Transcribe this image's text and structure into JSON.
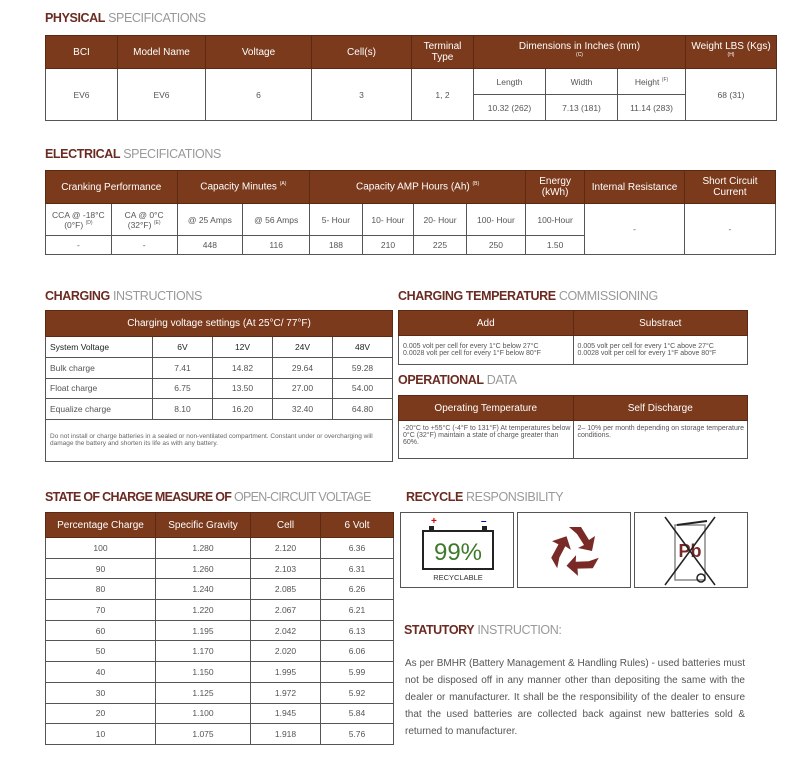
{
  "physical": {
    "title_bold": "PHYSICAL",
    "title_light": "SPECIFICATIONS",
    "headers": [
      "BCI",
      "Model Name",
      "Voltage",
      "Cell(s)",
      "Terminal Type",
      "Dimensions in Inches (mm)",
      "Weight LBS (Kgs)"
    ],
    "dim_note": "(C)",
    "weight_note": "(H)",
    "height_note": "(F)",
    "sub_headers": [
      "Length",
      "Width",
      "Height"
    ],
    "row": [
      "EV6",
      "EV6",
      "6",
      "3",
      "1, 2"
    ],
    "dims": [
      "10.32 (262)",
      "7.13 (181)",
      "11.14 (283)"
    ],
    "weight": "68 (31)"
  },
  "electrical": {
    "title_bold": "ELECTRICAL",
    "title_light": "SPECIFICATIONS",
    "headers": [
      "Cranking Performance",
      "Capacity Minutes",
      "Capacity AMP Hours (Ah)",
      "Energy (kWh)",
      "Internal Resistance",
      "Short Circuit Current"
    ],
    "notes": {
      "cap_min": "(A)",
      "cap_ah": "(B)",
      "cca": "(D)",
      "ca": "(E)"
    },
    "sub_headers": [
      "CCA @ -18°C (0°F)",
      "CA @ 0°C (32°F)",
      "@ 25 Amps",
      "@ 56 Amps",
      "5- Hour",
      "10- Hour",
      "20- Hour",
      "100- Hour",
      "100-Hour"
    ],
    "values": [
      "-",
      "-",
      "448",
      "116",
      "188",
      "210",
      "225",
      "250",
      "1.50"
    ],
    "internal_resistance": "-",
    "short_circuit": "-"
  },
  "charging": {
    "title_bold": "CHARGING",
    "title_light": "INSTRUCTIONS",
    "header": "Charging voltage settings (At 25°C/ 77°F)",
    "columns": [
      "System Voltage",
      "6V",
      "12V",
      "24V",
      "48V"
    ],
    "rows": [
      [
        "Bulk charge",
        "7.41",
        "14.82",
        "29.64",
        "59.28"
      ],
      [
        "Float charge",
        "6.75",
        "13.50",
        "27.00",
        "54.00"
      ],
      [
        "Equalize charge",
        "8.10",
        "16.20",
        "32.40",
        "64.80"
      ]
    ],
    "note": "Do not install or charge batteries in a sealed or non-ventilated compartment. Constant under or overcharging will damage the battery and shorten its life as with any battery."
  },
  "charging_temp": {
    "title_bold": "CHARGING TEMPERATURE",
    "title_light": "COMMISSIONING",
    "headers": [
      "Add",
      "Substract"
    ],
    "add": [
      "0.005 volt per cell for every 1°C below 27°C",
      "0.0028 volt per cell for every 1°F below 80°F"
    ],
    "subtract": [
      "0.005 volt per cell for every 1°C above 27°C",
      "0.0028 volt per cell for every 1°F above 80°F"
    ]
  },
  "operational": {
    "title_bold": "OPERATIONAL",
    "title_light": "DATA",
    "headers": [
      "Operating Temperature",
      "Self Discharge"
    ],
    "operating": "-20°C to +55°C (-4°F to 131°F) At temperatures below 0°C (32°F) maintain a state of charge greater than 60%.",
    "self_discharge": "2– 10% per month depending on storage temperature conditions."
  },
  "soc": {
    "title_bold": "STATE OF CHARGE MEASURE OF",
    "title_light": "OPEN-CIRCUIT VOLTAGE",
    "columns": [
      "Percentage Charge",
      "Specific Gravity",
      "Cell",
      "6 Volt"
    ],
    "rows": [
      [
        "100",
        "1.280",
        "2.120",
        "6.36"
      ],
      [
        "90",
        "1.260",
        "2.103",
        "6.31"
      ],
      [
        "80",
        "1.240",
        "2.085",
        "6.26"
      ],
      [
        "70",
        "1.220",
        "2.067",
        "6.21"
      ],
      [
        "60",
        "1.195",
        "2.042",
        "6.13"
      ],
      [
        "50",
        "1.170",
        "2.020",
        "6.06"
      ],
      [
        "40",
        "1.150",
        "1.995",
        "5.99"
      ],
      [
        "30",
        "1.125",
        "1.972",
        "5.92"
      ],
      [
        "20",
        "1.100",
        "1.945",
        "5.84"
      ],
      [
        "10",
        "1.075",
        "1.918",
        "5.76"
      ]
    ]
  },
  "recycle": {
    "title_bold": "RECYCLE",
    "title_light": "RESPONSIBILITY",
    "battery_percent": "99%",
    "battery_label": "RECYCLABLE",
    "pb": "Pb",
    "icons": [
      "battery-recyclable-icon",
      "recycle-icon",
      "no-bin-pb-icon"
    ],
    "color": "#7a2a26"
  },
  "statutory": {
    "title_bold": "STATUTORY",
    "title_light": "INSTRUCTION:",
    "text": "As per BMHR (Battery Management & Handling Rules) - used batteries must not be disposed off in any manner other than depositing the same with the dealer or manufacturer. It shall be the responsibility of the dealer to ensure that the used batteries are collected back against new batteries sold & returned to manufacturer."
  },
  "colors": {
    "header": "#7b3a1c",
    "title": "#6b2b22"
  }
}
